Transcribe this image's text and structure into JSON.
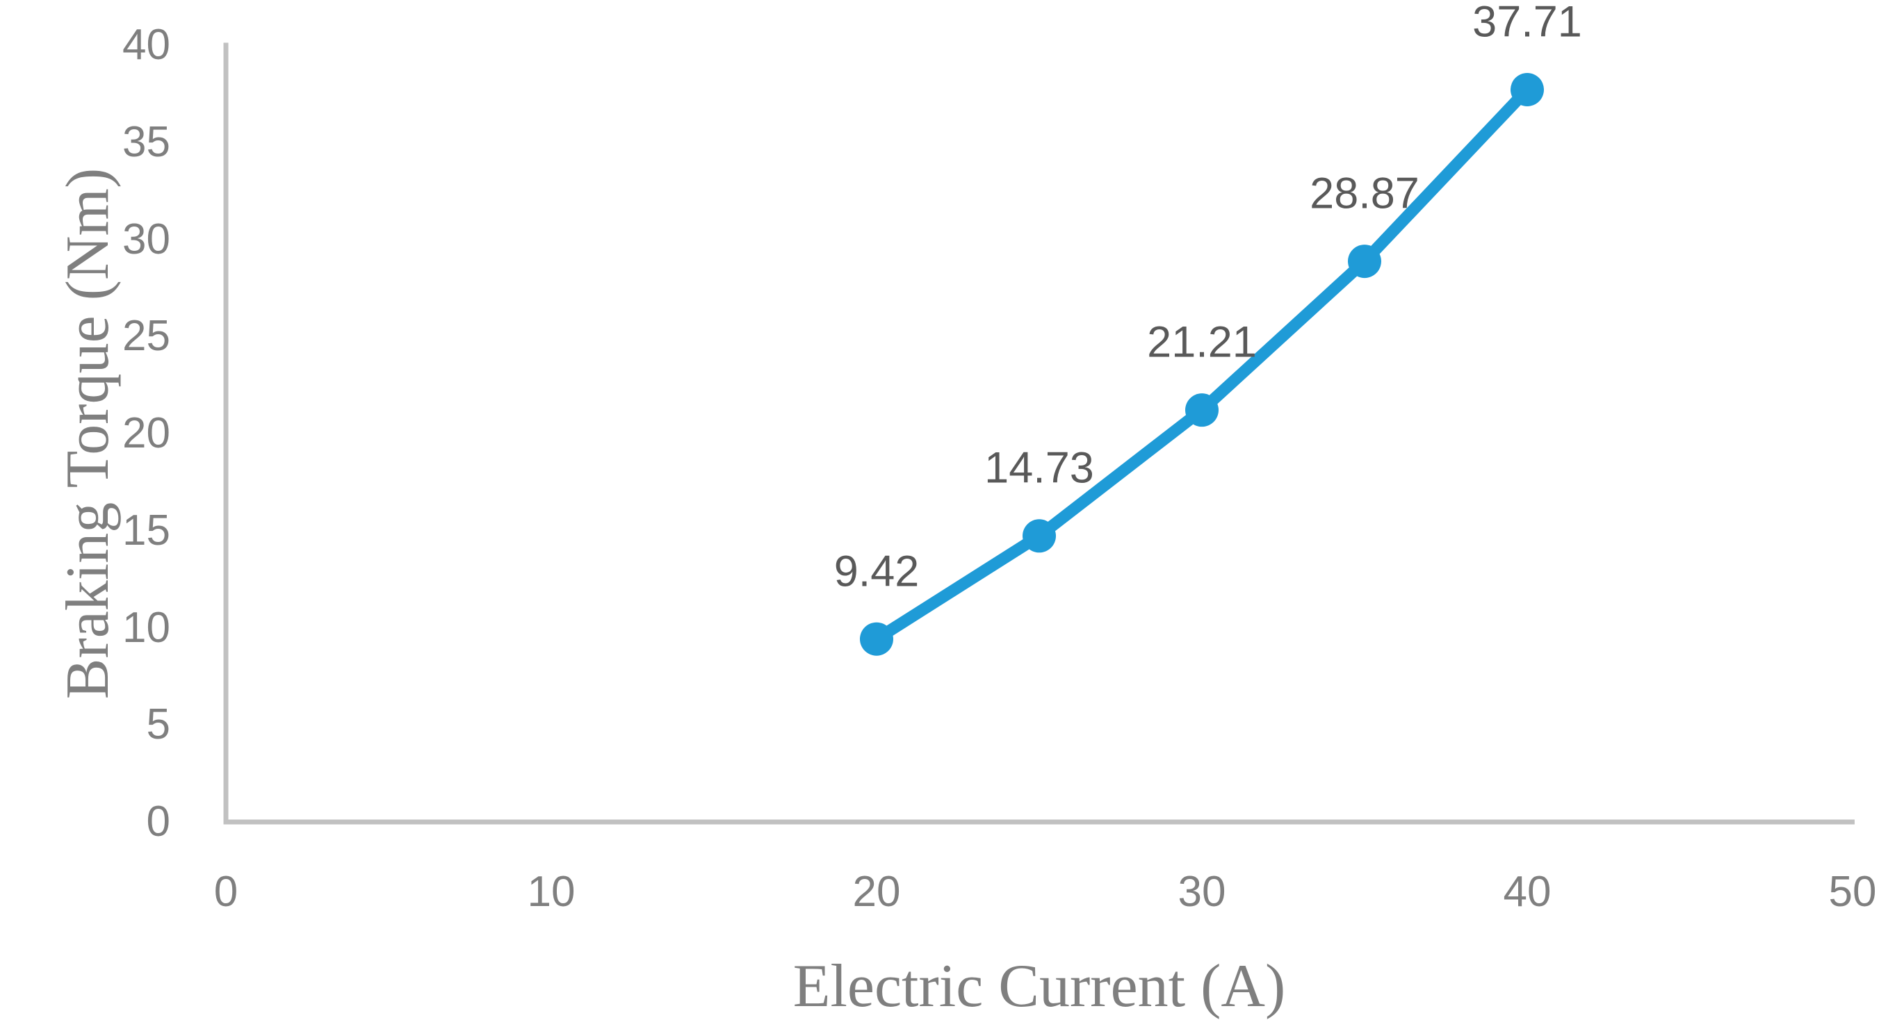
{
  "chart_data": {
    "type": "line",
    "title": "",
    "xlabel": "Electric Current (A)",
    "ylabel": "Braking Torque (Nm)",
    "series": [
      {
        "name": "Braking Torque",
        "x": [
          20,
          25,
          30,
          35,
          40
        ],
        "y": [
          9.42,
          14.73,
          21.21,
          28.87,
          37.71
        ],
        "data_labels": [
          "9.42",
          "14.73",
          "21.21",
          "28.87",
          "37.71"
        ]
      }
    ],
    "xlim": [
      0,
      50
    ],
    "ylim": [
      0,
      40
    ],
    "x_ticks": [
      "0",
      "10",
      "20",
      "30",
      "40",
      "50"
    ],
    "x_tick_values": [
      0,
      10,
      20,
      30,
      40,
      50
    ],
    "y_ticks": [
      "0",
      "5",
      "10",
      "15",
      "20",
      "25",
      "30",
      "35",
      "40"
    ],
    "y_tick_values": [
      0,
      5,
      10,
      15,
      20,
      25,
      30,
      35,
      40
    ],
    "grid": false,
    "legend": "none",
    "marker": "circle",
    "colors": {
      "series": "#1f9bd7",
      "axis_line": "#c1c1c1",
      "tick_label": "#7f7f7f",
      "data_label": "#595959",
      "axis_title": "#7f7f7f"
    }
  }
}
